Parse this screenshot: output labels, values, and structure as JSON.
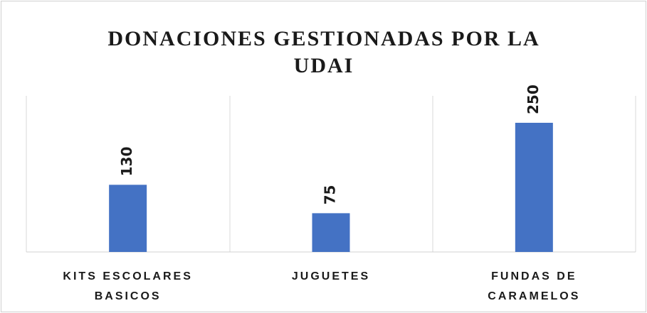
{
  "chart_data": {
    "type": "bar",
    "title": "DONACIONES GESTIONADAS POR LA UDAI",
    "categories": [
      "KITS ESCOLARES BASICOS",
      "JUGUETES",
      "FUNDAS DE CARAMELOS"
    ],
    "values": [
      130,
      75,
      250
    ],
    "color": "#4472c4"
  }
}
